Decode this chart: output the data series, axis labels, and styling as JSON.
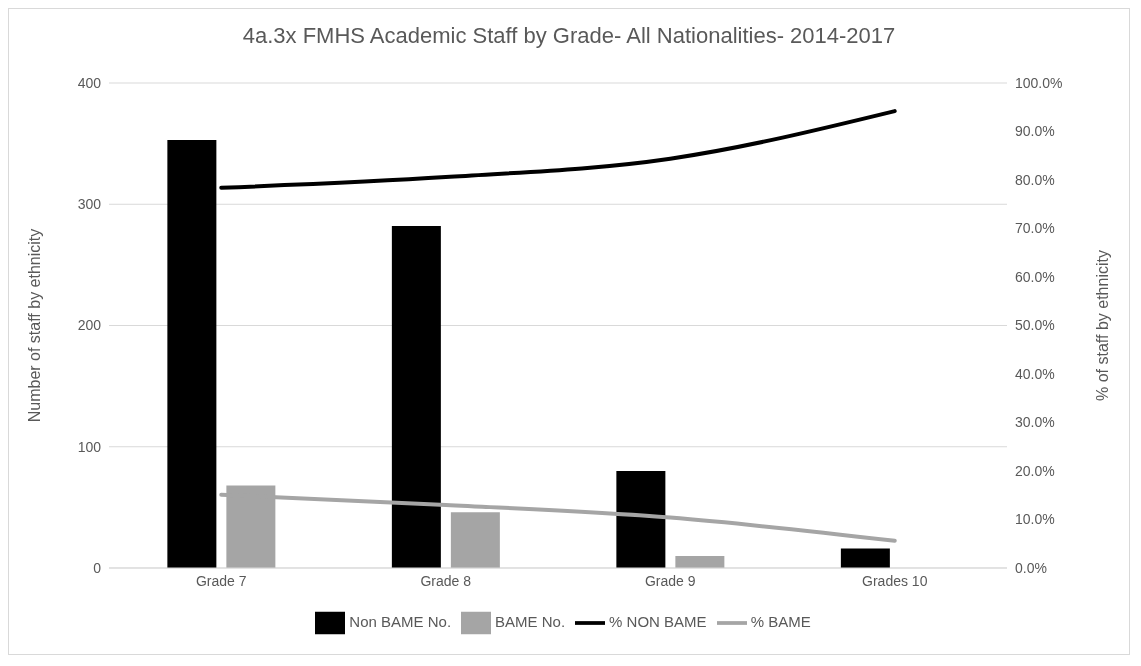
{
  "chart_data": {
    "type": "bar",
    "title": "4a.3x FMHS Academic Staff by Grade- All Nationalities- 2014-2017",
    "ylabel": "Number of staff by ethnicity",
    "y2label": "% of staff by ethnicity",
    "categories": [
      "Grade 7",
      "Grade 8",
      "Grade 9",
      "Grades 10"
    ],
    "series": [
      {
        "name": "Non BAME No.",
        "color": "#000000",
        "values": [
          353,
          282,
          80,
          16
        ]
      },
      {
        "name": "BAME No.",
        "color": "#a5a5a5",
        "values": [
          68,
          46,
          10,
          0
        ]
      },
      {
        "name": "% NON BAME",
        "type": "line",
        "axis": "y2",
        "color": "#000000",
        "values": [
          78.4,
          80.6,
          84.4,
          94.2
        ]
      },
      {
        "name": "% BAME",
        "type": "line",
        "axis": "y2",
        "color": "#a5a5a5",
        "values": [
          15.1,
          13,
          10.4,
          5.6
        ]
      }
    ],
    "ylim": [
      0,
      400
    ],
    "yticks": [
      0,
      100,
      200,
      300,
      400
    ],
    "y2lim": [
      0,
      100
    ],
    "y2ticks": [
      {
        "value": 0,
        "label": "0.0%"
      },
      {
        "value": 10,
        "label": "10.0%"
      },
      {
        "value": 20,
        "label": "20.0%"
      },
      {
        "value": 30,
        "label": "30.0%"
      },
      {
        "value": 40,
        "label": "40.0%"
      },
      {
        "value": 50,
        "label": "50.0%"
      },
      {
        "value": 60,
        "label": "60.0%"
      },
      {
        "value": 70,
        "label": "70.0%"
      },
      {
        "value": 80,
        "label": "80.0%"
      },
      {
        "value": 90,
        "label": "90.0%"
      },
      {
        "value": 100,
        "label": "100.0%"
      }
    ],
    "grid": "y",
    "legend": "bottom",
    "marker": "none"
  }
}
